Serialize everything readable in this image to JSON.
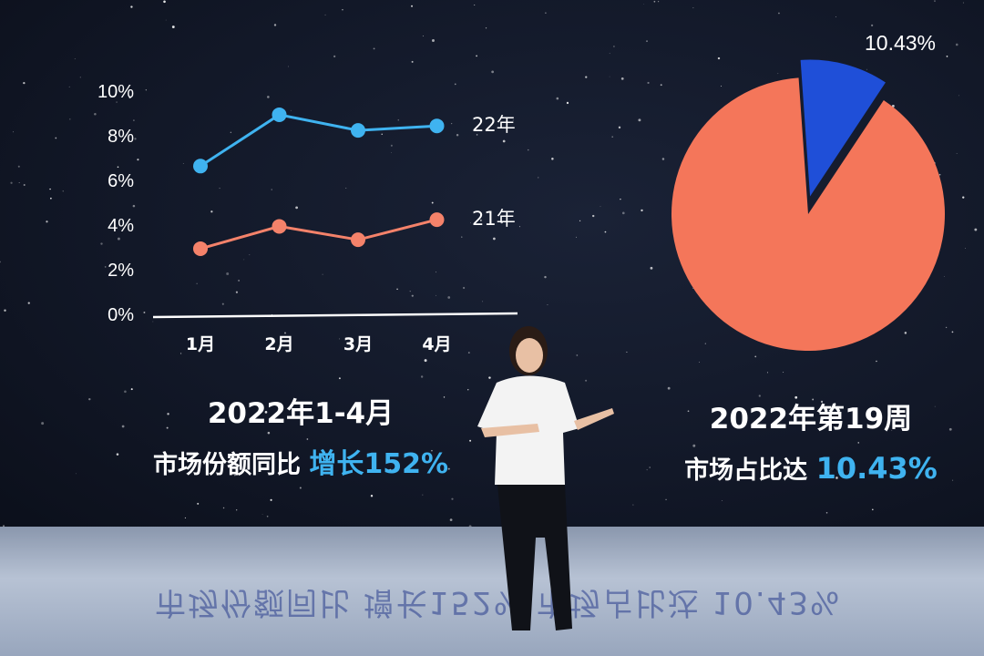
{
  "chart_data": [
    {
      "type": "line",
      "categories": [
        "1月",
        "2月",
        "3月",
        "4月"
      ],
      "y_ticks": [
        "0%",
        "2%",
        "4%",
        "6%",
        "8%",
        "10%"
      ],
      "ylim": [
        0,
        10
      ],
      "grid": false,
      "series": [
        {
          "name": "22年",
          "values": [
            6.6,
            8.9,
            8.2,
            8.4
          ],
          "color": "#3fb3f0"
        },
        {
          "name": "21年",
          "values": [
            2.9,
            3.9,
            3.3,
            4.2
          ],
          "color": "#f4826a"
        }
      ],
      "caption_line1": "2022年1-4月",
      "caption_line2_prefix": "市场份额同比",
      "caption_line2_highlight": "增长152%"
    },
    {
      "type": "pie",
      "slices": [
        {
          "label": "10.43%",
          "value": 10.43,
          "color": "#1f4fd8"
        },
        {
          "value": 89.57,
          "color": "#f4765a"
        }
      ],
      "caption_line1": "2022年第19周",
      "caption_line2_prefix": "市场占比达",
      "caption_line2_highlight": "10.43%"
    }
  ],
  "floor_reflection": "市场份额同比 增长152%   市场占比达 10.43%"
}
